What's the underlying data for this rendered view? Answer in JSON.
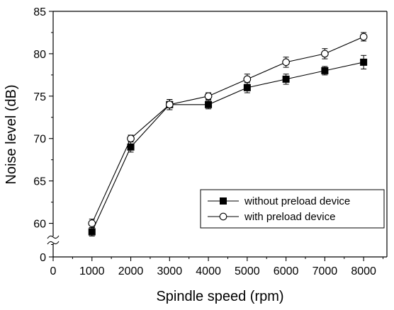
{
  "chart_data": {
    "type": "line",
    "xlabel": "Spindle speed (rpm)",
    "ylabel": "Noise level (dB)",
    "xlim": [
      0,
      8600
    ],
    "ylim": [
      0,
      85
    ],
    "y_axis_break": [
      0,
      57
    ],
    "x_ticks": [
      0,
      1000,
      2000,
      3000,
      4000,
      5000,
      6000,
      7000,
      8000
    ],
    "x_tick_labels": [
      "0",
      "1000",
      "2000",
      "3000",
      "4000",
      "5000",
      "6000",
      "7000",
      "8000"
    ],
    "y_ticks": [
      0,
      60,
      65,
      70,
      75,
      80,
      85
    ],
    "y_tick_labels": [
      "0",
      "60",
      "65",
      "70",
      "75",
      "80",
      "85"
    ],
    "grid": false,
    "legend_position": "bottom-right",
    "x": [
      1000,
      2000,
      3000,
      4000,
      5000,
      6000,
      7000,
      8000
    ],
    "series": [
      {
        "name": "without preload device",
        "marker": "filled-square",
        "color": "#000000",
        "values": [
          59.0,
          69.0,
          74.0,
          74.0,
          76.0,
          77.0,
          78.0,
          79.0
        ],
        "error": [
          0.5,
          0.6,
          0.6,
          0.5,
          0.6,
          0.6,
          0.5,
          0.8
        ]
      },
      {
        "name": "with preload device",
        "marker": "open-circle",
        "color": "#000000",
        "values": [
          60.0,
          70.0,
          74.0,
          75.0,
          77.0,
          79.0,
          80.0,
          82.0
        ],
        "error": [
          0.5,
          0.4,
          0.6,
          0.4,
          0.6,
          0.6,
          0.6,
          0.5
        ]
      }
    ]
  }
}
